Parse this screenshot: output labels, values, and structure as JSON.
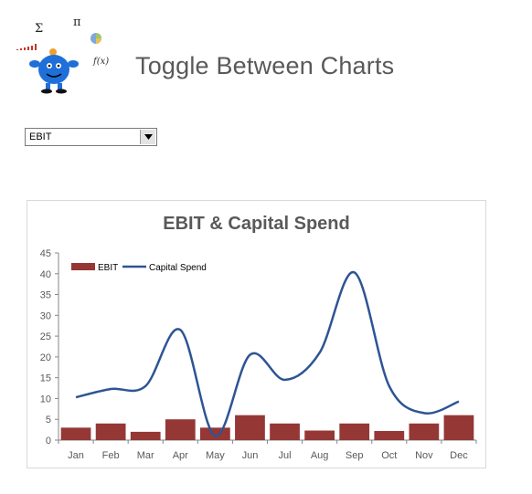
{
  "page": {
    "title": "Toggle Between Charts"
  },
  "logo": {
    "icon": "mascot-icon",
    "symbols": [
      "Σ",
      "π",
      "f(x)"
    ]
  },
  "dropdown": {
    "selected": "EBIT"
  },
  "chart_data": {
    "type": "bar",
    "title": "EBIT & Capital Spend",
    "categories": [
      "Jan",
      "Feb",
      "Mar",
      "Apr",
      "May",
      "Jun",
      "Jul",
      "Aug",
      "Sep",
      "Oct",
      "Nov",
      "Dec"
    ],
    "series": [
      {
        "name": "EBIT",
        "type": "bar",
        "color": "#953735",
        "values": [
          3,
          4,
          2,
          5,
          3,
          6,
          4,
          2.3,
          4,
          2.2,
          4,
          6
        ]
      },
      {
        "name": "Capital Spend",
        "type": "line",
        "smooth": true,
        "color": "#2e5494",
        "values": [
          10.3,
          12.3,
          13,
          26.5,
          1,
          20.5,
          14.5,
          21,
          40.3,
          13,
          6.5,
          9.3
        ]
      }
    ],
    "ylim": [
      0,
      45
    ],
    "yticks": [
      0,
      5,
      10,
      15,
      20,
      25,
      30,
      35,
      40,
      45
    ],
    "legend": "top-left",
    "grid": false
  }
}
